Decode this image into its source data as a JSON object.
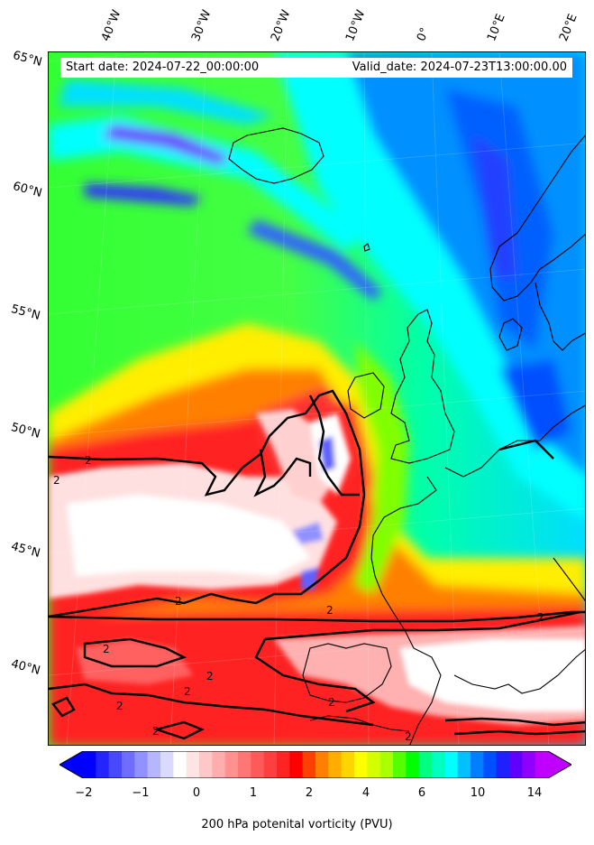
{
  "header": {
    "start_date": "Start date: 2024-07-22_00:00:00",
    "valid_date": "Valid_date: 2024-07-23T13:00:00.00"
  },
  "axes": {
    "longitude_labels": [
      "40°W",
      "30°W",
      "20°W",
      "10°W",
      "0°",
      "10°E",
      "20°E"
    ],
    "latitude_labels": [
      "65°N",
      "60°N",
      "55°N",
      "50°N",
      "45°N",
      "40°N"
    ]
  },
  "contour_labels": [
    "2",
    "2",
    "2",
    "2",
    "2",
    "2",
    "2",
    "2",
    "2",
    "2",
    "2",
    "2"
  ],
  "colorbar": {
    "label": "200 hPa potenital vorticity (PVU)",
    "ticks": [
      "−2",
      "−1",
      "0",
      "1",
      "2",
      "4",
      "6",
      "10",
      "14"
    ],
    "colors": [
      "#0000ff",
      "#2424ff",
      "#4848ff",
      "#6d6dff",
      "#9191ff",
      "#b6b6ff",
      "#dadaff",
      "#ffffff",
      "#ffe4e4",
      "#ffc8c8",
      "#ffadad",
      "#ff9191",
      "#ff7676",
      "#ff5a5a",
      "#ff3f3f",
      "#ff2424",
      "#ff0000",
      "#ff4000",
      "#ff8000",
      "#ffae00",
      "#ffd500",
      "#ffff00",
      "#d4ff00",
      "#aaff00",
      "#55ff00",
      "#00ff00",
      "#00ff80",
      "#00ffc0",
      "#00ffff",
      "#00c0ff",
      "#0080ff",
      "#0050ff",
      "#2020ff",
      "#6000ff",
      "#9000ff",
      "#c000ff"
    ],
    "under_color": "#0000ff",
    "over_color": "#c000ff"
  }
}
